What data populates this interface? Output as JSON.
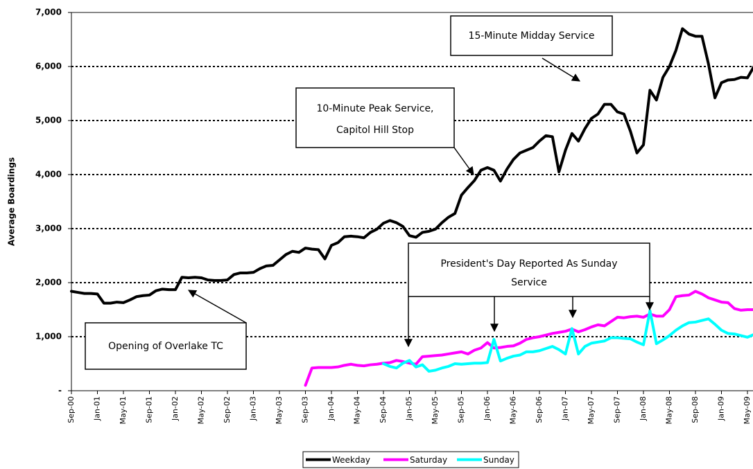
{
  "chart_data": {
    "type": "line",
    "y_label": "Average Boardings",
    "categories": [
      "Sep-00",
      null,
      null,
      null,
      "Jan-01",
      null,
      null,
      null,
      "May-01",
      null,
      null,
      null,
      "Sep-01",
      null,
      null,
      null,
      "Jan-02",
      null,
      null,
      null,
      "May-02",
      null,
      null,
      null,
      "Sep-02",
      null,
      null,
      null,
      "Jan-03",
      null,
      null,
      null,
      "May-03",
      null,
      null,
      null,
      "Sep-03",
      null,
      null,
      null,
      "Jan-04",
      null,
      null,
      null,
      "May-04",
      null,
      null,
      null,
      "Sep-04",
      null,
      null,
      null,
      "Jan-05",
      null,
      null,
      null,
      "May-05",
      null,
      null,
      null,
      "Sep-05",
      null,
      null,
      null,
      "Jan-06",
      null,
      null,
      null,
      "May-06",
      null,
      null,
      null,
      "Sep-06",
      null,
      null,
      null,
      "Jan-07",
      null,
      null,
      null,
      "May-07",
      null,
      null,
      null,
      "Sep-07",
      null,
      null,
      null,
      "Jan-08",
      null,
      null,
      null,
      "May-08",
      null,
      null,
      null,
      "Sep-08",
      null,
      null,
      null,
      "Jan-09",
      null,
      null,
      null,
      "May-09",
      null
    ],
    "series": [
      {
        "name": "Weekday",
        "color": "#000000",
        "values": [
          1840,
          1820,
          1800,
          1800,
          1790,
          1620,
          1620,
          1640,
          1630,
          1680,
          1740,
          1760,
          1770,
          1850,
          1880,
          1870,
          1870,
          2100,
          2090,
          2100,
          2090,
          2050,
          2040,
          2040,
          2050,
          2150,
          2180,
          2180,
          2190,
          2260,
          2310,
          2320,
          2420,
          2520,
          2580,
          2560,
          2640,
          2620,
          2610,
          2440,
          2690,
          2740,
          2850,
          2860,
          2850,
          2830,
          2930,
          2990,
          3100,
          3150,
          3110,
          3040,
          2870,
          2840,
          2930,
          2950,
          2990,
          3110,
          3210,
          3280,
          3620,
          3760,
          3890,
          4080,
          4130,
          4080,
          3880,
          4100,
          4280,
          4400,
          4450,
          4500,
          4620,
          4720,
          4700,
          4050,
          4450,
          4760,
          4620,
          4850,
          5040,
          5120,
          5300,
          5300,
          5160,
          5120,
          4800,
          4400,
          4550,
          5560,
          5380,
          5800,
          6000,
          6300,
          6700,
          6600,
          6560,
          6560,
          6050,
          5420,
          5700,
          5750,
          5760,
          5800,
          5790,
          6000
        ]
      },
      {
        "name": "Saturday",
        "color": "#ff00ff",
        "values": [
          null,
          null,
          null,
          null,
          null,
          null,
          null,
          null,
          null,
          null,
          null,
          null,
          null,
          null,
          null,
          null,
          null,
          null,
          null,
          null,
          null,
          null,
          null,
          null,
          null,
          null,
          null,
          null,
          null,
          null,
          null,
          null,
          null,
          null,
          null,
          null,
          100,
          420,
          430,
          430,
          430,
          440,
          470,
          490,
          470,
          460,
          480,
          490,
          510,
          520,
          560,
          540,
          510,
          490,
          630,
          640,
          650,
          660,
          680,
          700,
          720,
          680,
          750,
          790,
          890,
          790,
          800,
          820,
          830,
          880,
          950,
          980,
          1000,
          1030,
          1060,
          1080,
          1100,
          1140,
          1090,
          1130,
          1180,
          1220,
          1200,
          1280,
          1360,
          1350,
          1370,
          1380,
          1360,
          1420,
          1380,
          1380,
          1500,
          1740,
          1760,
          1770,
          1840,
          1790,
          1720,
          1680,
          1640,
          1630,
          1520,
          1490,
          1500,
          1500
        ]
      },
      {
        "name": "Sunday",
        "color": "#00ffff",
        "values": [
          null,
          null,
          null,
          null,
          null,
          null,
          null,
          null,
          null,
          null,
          null,
          null,
          null,
          null,
          null,
          null,
          null,
          null,
          null,
          null,
          null,
          null,
          null,
          null,
          null,
          null,
          null,
          null,
          null,
          null,
          null,
          null,
          null,
          null,
          null,
          null,
          null,
          null,
          null,
          null,
          null,
          null,
          null,
          null,
          null,
          null,
          null,
          null,
          500,
          450,
          420,
          510,
          560,
          440,
          480,
          360,
          380,
          420,
          450,
          500,
          490,
          500,
          510,
          510,
          520,
          950,
          550,
          600,
          640,
          660,
          720,
          720,
          740,
          780,
          820,
          760,
          680,
          1150,
          680,
          820,
          880,
          900,
          920,
          980,
          980,
          970,
          960,
          900,
          850,
          1480,
          870,
          940,
          1020,
          1120,
          1200,
          1260,
          1270,
          1300,
          1330,
          1230,
          1120,
          1060,
          1050,
          1020,
          990,
          1040
        ]
      }
    ],
    "ylim": [
      0,
      7000
    ],
    "yticks": [
      {
        "value": 0,
        "label": "-"
      },
      {
        "value": 1000,
        "label": "1,000"
      },
      {
        "value": 2000,
        "label": "2,000"
      },
      {
        "value": 3000,
        "label": "3,000"
      },
      {
        "value": 4000,
        "label": "4,000"
      },
      {
        "value": 5000,
        "label": "5,000"
      },
      {
        "value": 6000,
        "label": "6,000"
      },
      {
        "value": 7000,
        "label": "7,000"
      }
    ],
    "grid": true,
    "legend": "bottom",
    "annotations": [
      {
        "lines": [
          "15-Minute Midday Service"
        ]
      },
      {
        "lines": [
          "10-Minute Peak Service,",
          "Capitol Hill Stop"
        ]
      },
      {
        "lines": [
          "President's Day Reported As Sunday",
          "Service"
        ]
      },
      {
        "lines": [
          "Opening of Overlake TC"
        ]
      }
    ]
  }
}
